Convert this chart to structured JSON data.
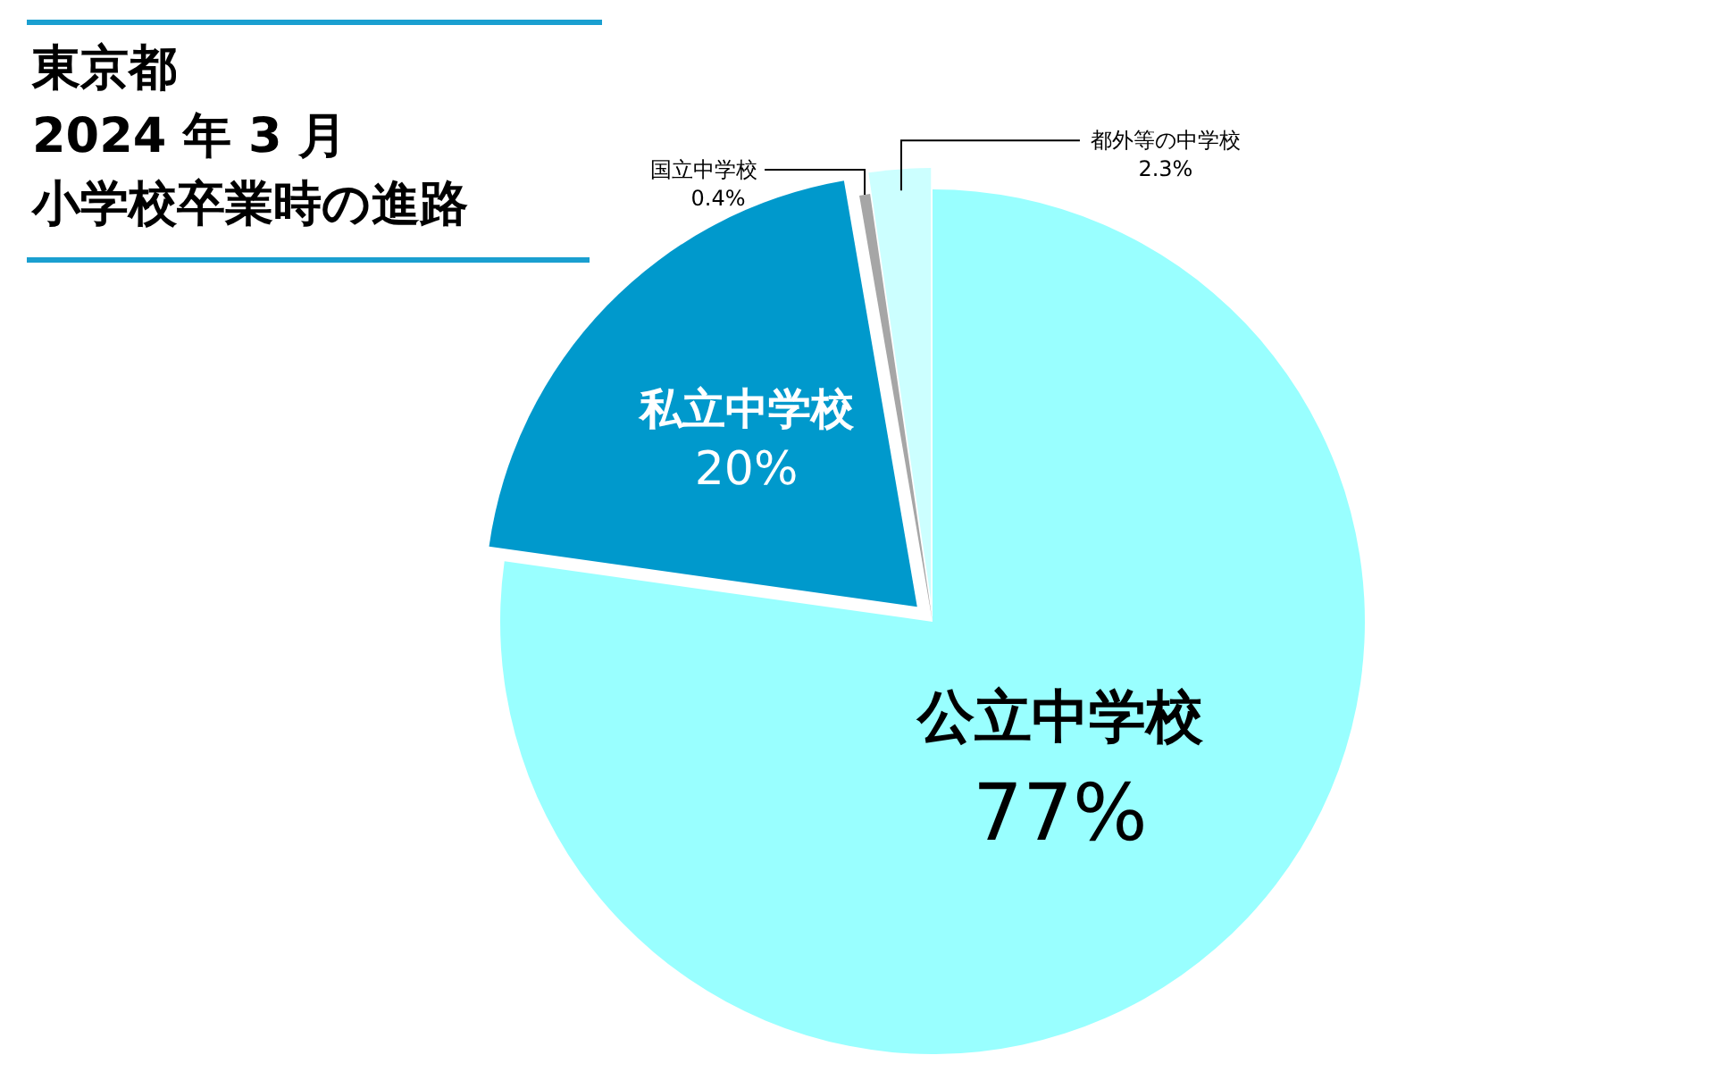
{
  "chart_data": {
    "type": "pie",
    "title": "東京都",
    "subtitle": "2024 年 3 月",
    "annotations": [
      "小学校卒業時の進路"
    ],
    "categories": [
      "公立中学校",
      "私立中学校",
      "国立中学校",
      "都外等の中学校"
    ],
    "values": [
      77,
      20,
      0.4,
      2.3
    ],
    "value_labels": [
      "77%",
      "20%",
      "0.4%",
      "2.3%"
    ],
    "colors": [
      "#99ffff",
      "#0099cc",
      "#a6a6a6",
      "#ccffff"
    ]
  }
}
